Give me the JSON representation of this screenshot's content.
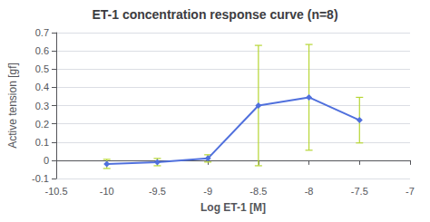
{
  "chart_data": {
    "type": "line",
    "title": "ET-1 concentration response curve (n=8)",
    "xlabel": "Log ET-1 [M]",
    "ylabel": "Active tension [gf]",
    "x": [
      -10,
      -9.5,
      -9,
      -8.5,
      -8,
      -7.5
    ],
    "series": [
      {
        "values": [
          -0.02,
          -0.01,
          0.01,
          0.3,
          0.345,
          0.22
        ],
        "yerr_lower": [
          0.025,
          0.02,
          0.02,
          0.33,
          0.29,
          0.125
        ],
        "yerr_upper": [
          0.025,
          0.02,
          0.02,
          0.33,
          0.29,
          0.125
        ],
        "marker": "diamond"
      }
    ],
    "xlim": [
      -10.5,
      -7.0
    ],
    "ylim": [
      -0.1,
      0.7
    ],
    "xticks": [
      -10.5,
      -10,
      -9.5,
      -9,
      -8.5,
      -8,
      -7.5,
      -7
    ],
    "yticks": [
      -0.1,
      0.0,
      0.1,
      0.2,
      0.3,
      0.4,
      0.5,
      0.6,
      0.7
    ],
    "grid": true
  }
}
